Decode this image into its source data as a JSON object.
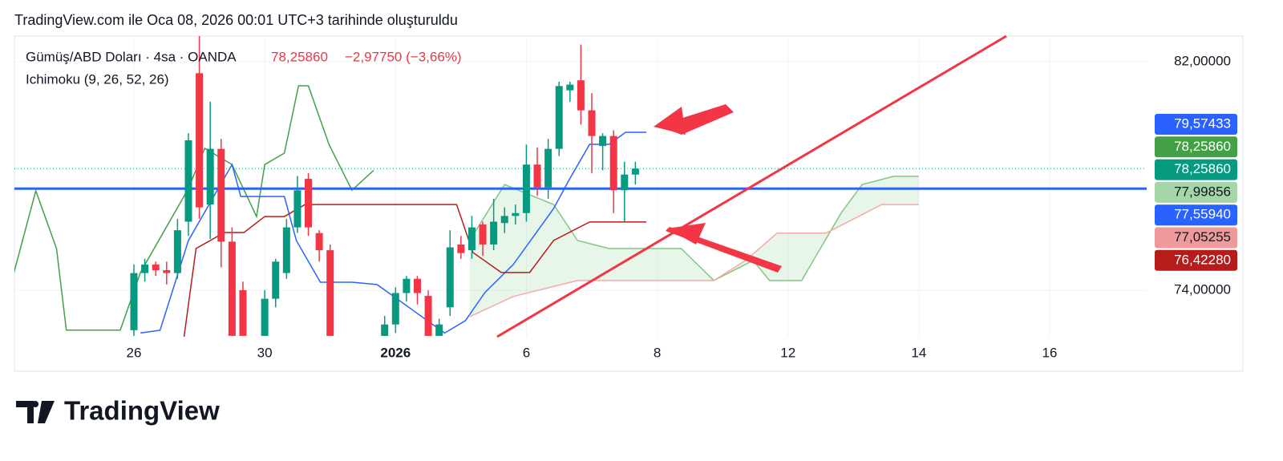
{
  "header": "TradingView.com ile Oca 08, 2026 00:01 UTC+3 tarihinde oluşturuldu",
  "brand": "TradingView",
  "chart_data": {
    "type": "candlestick",
    "symbol": "Gümüş/ABD Doları · 4sa · OANDA",
    "last": "78,25860",
    "change": "−2,97750 (−3,66%)",
    "indicator": "Ichimoku (9, 26, 52, 26)",
    "up_color": "#089981",
    "down_color": "#f23645",
    "x": [
      0,
      1,
      2,
      3,
      4,
      5,
      6,
      7,
      8,
      9,
      10,
      12,
      13,
      14,
      15,
      16,
      17,
      18,
      23,
      24,
      25,
      26,
      27,
      28,
      29,
      30,
      31,
      32,
      33,
      34,
      35,
      36,
      37,
      38,
      39,
      40,
      41,
      42,
      43,
      44,
      45,
      46
    ],
    "open": [
      72.6,
      74.6,
      74.9,
      74.7,
      74.6,
      76.4,
      81.6,
      77.0,
      78.95,
      75.7,
      74.0,
      72.4,
      73.7,
      74.6,
      76.2,
      77.9,
      76.0,
      75.4,
      72.4,
      72.8,
      73.9,
      74.4,
      73.8,
      72.4,
      73.4,
      75.6,
      75.4,
      76.3,
      75.6,
      76.35,
      76.6,
      76.7,
      78.4,
      77.6,
      78.95,
      81.0,
      81.35,
      80.3,
      79.05,
      79.4,
      77.5,
      78.05
    ],
    "high": [
      74.9,
      75.1,
      75.0,
      75.0,
      76.5,
      79.5,
      82.9,
      80.6,
      79.3,
      76.2,
      74.3,
      74.0,
      75.1,
      76.5,
      78.0,
      78.1,
      76.1,
      75.6,
      73.1,
      74.1,
      74.5,
      74.5,
      74.0,
      73.0,
      76.1,
      75.9,
      76.6,
      76.4,
      77.2,
      76.9,
      77.0,
      79.1,
      79.0,
      79.3,
      81.3,
      81.3,
      82.6,
      80.9,
      79.5,
      79.6,
      78.5,
      78.5
    ],
    "low": [
      72.4,
      74.3,
      74.5,
      74.2,
      74.4,
      75.9,
      76.5,
      75.8,
      74.8,
      72.4,
      72.4,
      72.4,
      73.4,
      74.4,
      76.0,
      75.9,
      75.0,
      72.4,
      72.4,
      72.5,
      73.6,
      73.5,
      72.4,
      72.4,
      73.1,
      75.1,
      75.1,
      75.2,
      75.4,
      76.0,
      76.3,
      76.4,
      77.3,
      77.2,
      78.7,
      80.6,
      79.8,
      78.1,
      78.2,
      76.7,
      76.4,
      77.7
    ],
    "close": [
      74.6,
      74.9,
      74.7,
      74.6,
      76.1,
      79.25,
      76.9,
      78.95,
      75.7,
      72.4,
      72.4,
      73.7,
      75.0,
      76.2,
      77.5,
      76.2,
      75.4,
      72.4,
      72.8,
      73.9,
      74.4,
      73.9,
      72.4,
      72.8,
      75.5,
      75.3,
      76.2,
      75.6,
      76.4,
      76.6,
      76.7,
      78.4,
      77.6,
      78.95,
      81.15,
      81.2,
      80.3,
      79.4,
      79.4,
      77.5,
      78.05,
      78.2586
    ],
    "lines": [
      {
        "color": "#43a047",
        "x": [
          -11.0,
          -9.0,
          -7.1,
          -6.2,
          -1.25,
          0.6,
          5.0,
          6.5,
          9.0,
          11.25,
          12.0,
          13.8,
          15.1,
          16.0,
          17.9,
          20.0,
          22.0
        ],
        "values": [
          74.62,
          77.48,
          75.46,
          72.6,
          72.6,
          74.62,
          77.56,
          78.97,
          78.4,
          76.58,
          78.4,
          78.8,
          81.16,
          81.16,
          79.1,
          77.5,
          78.2
        ]
      },
      {
        "color": "#2962ff",
        "x": [
          0.6,
          2.4,
          5.0,
          9.0,
          9.8,
          13.8,
          14.9,
          17.1,
          20.0,
          22.3,
          28.5,
          30.4,
          32.2,
          34.8,
          38.5,
          39.9,
          41.8,
          43.6,
          45.1,
          47.0
        ],
        "values": [
          72.5,
          72.6,
          75.74,
          78.4,
          77.28,
          77.28,
          75.74,
          74.28,
          74.28,
          74.2,
          72.5,
          72.93,
          73.92,
          74.9,
          76.86,
          77.85,
          79.11,
          79.11,
          79.53,
          79.53
        ]
      },
      {
        "color": "#b71c1c",
        "x": [
          4.6,
          5.7,
          8.3,
          10.1,
          12.0,
          13.8,
          15.7,
          24.5,
          29.6,
          31.1,
          33.7,
          36.3,
          38.5,
          41.8,
          47.0
        ],
        "values": [
          72.37,
          75.46,
          76.02,
          76.02,
          76.58,
          76.58,
          77.0,
          77.0,
          77.0,
          75.32,
          74.62,
          74.62,
          75.74,
          76.39,
          76.39
        ]
      }
    ],
    "span_a": {
      "color": "#81c784",
      "x": [
        30.8,
        34.0,
        38.5,
        40.7,
        43.6,
        50.2,
        53.2,
        56.8,
        58.3,
        61.25,
        64.9,
        66.8,
        69.7,
        72.0
      ],
      "values": [
        75.74,
        77.7,
        77.0,
        75.74,
        75.46,
        75.46,
        74.34,
        75.04,
        74.34,
        74.34,
        76.72,
        77.7,
        77.99,
        77.99
      ]
    },
    "span_b": {
      "color": "#f7a9a7",
      "x": [
        30.8,
        34.8,
        40.7,
        53.2,
        56.1,
        59.0,
        63.5,
        68.6,
        72.0
      ],
      "values": [
        73.07,
        73.78,
        74.34,
        74.34,
        75.04,
        76.0,
        76.0,
        77.0,
        77.0
      ]
    },
    "hline": 77.5594,
    "hline_color": "#2962ff",
    "xlim": [
      -10.96,
      92.9
    ],
    "xticks": [
      {
        "value": 0,
        "label": "26"
      },
      {
        "value": 12,
        "label": "30"
      },
      {
        "value": 24,
        "label": "2026"
      },
      {
        "value": 36,
        "label": "6"
      },
      {
        "value": 48,
        "label": "8"
      },
      {
        "value": 60,
        "label": "12"
      },
      {
        "value": 72,
        "label": "14"
      },
      {
        "value": 84,
        "label": "16"
      }
    ],
    "ylim": [
      72.37,
      82.9
    ],
    "yticks": [
      {
        "value": 74,
        "label": "74,00000"
      },
      {
        "value": 82,
        "label": "82,00000"
      }
    ],
    "price_labels": [
      {
        "value": 79.57433,
        "label": "79,57433",
        "color": "#2962ff"
      },
      {
        "value": 78.2586,
        "label": "78,25860",
        "color": "#43a047"
      },
      {
        "value": 78.2586,
        "label": "78,25860",
        "color": "#089981"
      },
      {
        "value": 77.99856,
        "label": "77,99856",
        "color": "#a5d6a7"
      },
      {
        "value": 77.5594,
        "label": "77,55940",
        "color": "#2962ff"
      },
      {
        "value": 77.05255,
        "label": "77,05255",
        "color": "#ef9a9a"
      },
      {
        "value": 76.4228,
        "label": "76,42280",
        "color": "#b71c1c"
      }
    ]
  }
}
